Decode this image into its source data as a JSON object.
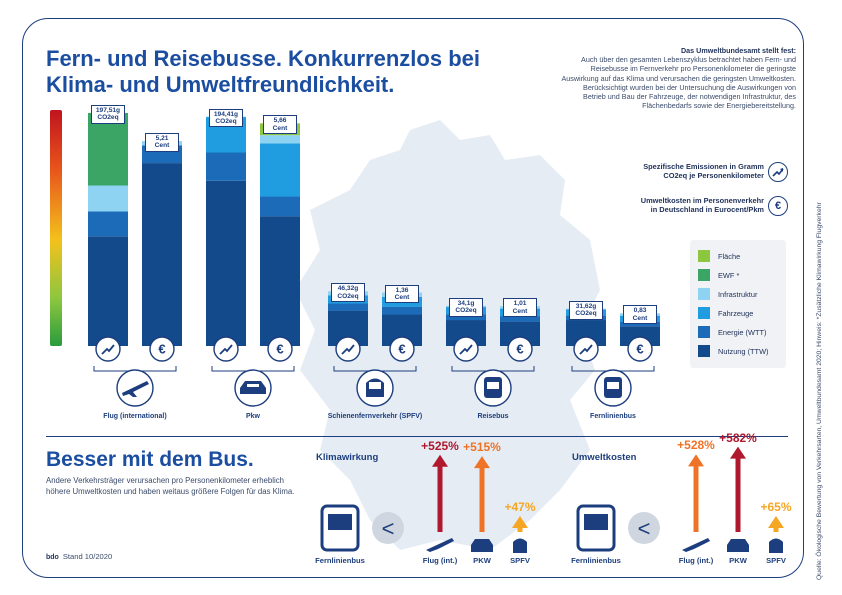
{
  "title": "Fern- und Reisebusse. Konkurrenzlos bei Klima- und Umweltfreundlichkeit.",
  "intro": {
    "heading": "Das Umweltbundesamt stellt fest:",
    "text": "Auch über den gesamten Lebenszyklus betrachtet haben Fern- und Reisebusse im Fernverkehr pro Personenkilometer die geringste Auswirkung auf das Klima und verursachen die geringsten Umweltkosten. Berücksichtigt wurden bei der Untersuchung die Auswirkungen von Betrieb und Bau der Fahrzeuge, der notwendigen Infrastruktur, des Flächenbedarfs sowie der Energiebereitstellung."
  },
  "key": {
    "emissions_line1": "Spezifische Emissionen in Gramm",
    "emissions_line2": "CO2eq je Personenkilometer",
    "costs_line1": "Umweltkosten im Personenverkehr",
    "costs_line2": "in Deutschland in Eurocent/Pkm",
    "emissions_icon": "trend-arrow-icon",
    "costs_icon": "euro-icon"
  },
  "colors": {
    "Fläche": "#8dc63f",
    "EWF *": "#3aa564",
    "Infrastruktur": "#8fd3f2",
    "Fahrzeuge": "#1f9de0",
    "Energie (WTT)": "#1b6bb8",
    "Nutzung (TTW)": "#124a8c"
  },
  "chart_data": {
    "type": "bar",
    "stacked": true,
    "categories": [
      "Flug (international)",
      "Pkw",
      "Schienenfernverkehr (SPFV)",
      "Reisebus",
      "Fernlinienbus"
    ],
    "legend_order": [
      "Fläche",
      "EWF *",
      "Infrastruktur",
      "Fahrzeuge",
      "Energie (WTT)",
      "Nutzung (TTW)"
    ],
    "legend_placement": "right",
    "emissions": {
      "unit": "g CO2eq/Pkm",
      "totals": [
        197.51,
        194.41,
        46.32,
        34.1,
        31.62
      ],
      "labels": [
        "197,51g",
        "194,41g",
        "46,32g",
        "34,1g",
        "31,62g"
      ],
      "unit_label": "CO2eq",
      "series": [
        {
          "name": "Nutzung (TTW)",
          "values": [
            93,
            140,
            30,
            22,
            22
          ]
        },
        {
          "name": "Energie (WTT)",
          "values": [
            21,
            24,
            6,
            5,
            4
          ]
        },
        {
          "name": "Fahrzeuge",
          "values": [
            0,
            30,
            7,
            6,
            5
          ]
        },
        {
          "name": "Infrastruktur",
          "values": [
            22,
            0.4,
            3.3,
            1.1,
            0.62
          ]
        },
        {
          "name": "EWF *",
          "values": [
            61.51,
            0,
            0,
            0,
            0
          ]
        },
        {
          "name": "Fläche",
          "values": [
            0,
            0,
            0,
            0,
            0
          ]
        }
      ]
    },
    "costs": {
      "unit": "Eurocent/Pkm",
      "totals": [
        5.21,
        5.66,
        1.36,
        1.01,
        0.83
      ],
      "labels": [
        "5,21",
        "5,66",
        "1,36",
        "1,01",
        "0,83"
      ],
      "unit_label": "Cent",
      "series": [
        {
          "name": "Nutzung (TTW)",
          "values": [
            4.65,
            3.3,
            0.8,
            0.62,
            0.5
          ]
        },
        {
          "name": "Energie (WTT)",
          "values": [
            0.45,
            0.5,
            0.2,
            0.14,
            0.12
          ]
        },
        {
          "name": "Fahrzeuge",
          "values": [
            0,
            1.35,
            0.25,
            0.19,
            0.15
          ]
        },
        {
          "name": "Infrastruktur",
          "values": [
            0.11,
            0.21,
            0.11,
            0.06,
            0.06
          ]
        },
        {
          "name": "EWF *",
          "values": [
            0,
            0,
            0,
            0,
            0
          ]
        },
        {
          "name": "Fläche",
          "values": [
            0,
            0.3,
            0,
            0,
            0
          ]
        }
      ]
    }
  },
  "bottom": {
    "heading": "Besser mit dem Bus.",
    "text": "Andere Verkehrsträger verursachen pro Personenkilometer erheblich höhere Umweltkosten und haben weitaus größere Folgen für das Klima.",
    "stand": "Stand 10/2020",
    "logo_text": "bdo",
    "less_symbol": "<",
    "klima": {
      "title": "Klimawirkung",
      "base_label": "Fernlinienbus",
      "items": [
        {
          "label": "Flug (int.)",
          "pct": "+525%",
          "value": 525,
          "color": "#b0182e"
        },
        {
          "label": "PKW",
          "pct": "+515%",
          "value": 515,
          "color": "#ee7326"
        },
        {
          "label": "SPFV",
          "pct": "+47%",
          "value": 47,
          "color": "#f5a623"
        }
      ]
    },
    "kosten": {
      "title": "Umweltkosten",
      "base_label": "Fernlinienbus",
      "items": [
        {
          "label": "Flug (int.)",
          "pct": "+528%",
          "value": 528,
          "color": "#ee7326"
        },
        {
          "label": "PKW",
          "pct": "+582%",
          "value": 582,
          "color": "#b0182e"
        },
        {
          "label": "SPFV",
          "pct": "+65%",
          "value": 65,
          "color": "#f5a623"
        }
      ]
    }
  },
  "source_note": "Quelle: Ökologische Bewertung von Verkehrsarten, Umweltbundesamt 2020; Hinweis: *Zusätzliche Klimawirkung Flugverkehr"
}
